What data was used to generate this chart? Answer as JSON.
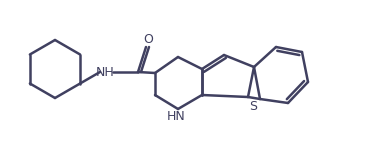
{
  "bg_color": "#ffffff",
  "line_color": "#404060",
  "line_width": 1.8,
  "figsize": [
    3.67,
    1.47
  ],
  "dpi": 100,
  "xlim": [
    0,
    367
  ],
  "ylim": [
    0,
    147
  ]
}
